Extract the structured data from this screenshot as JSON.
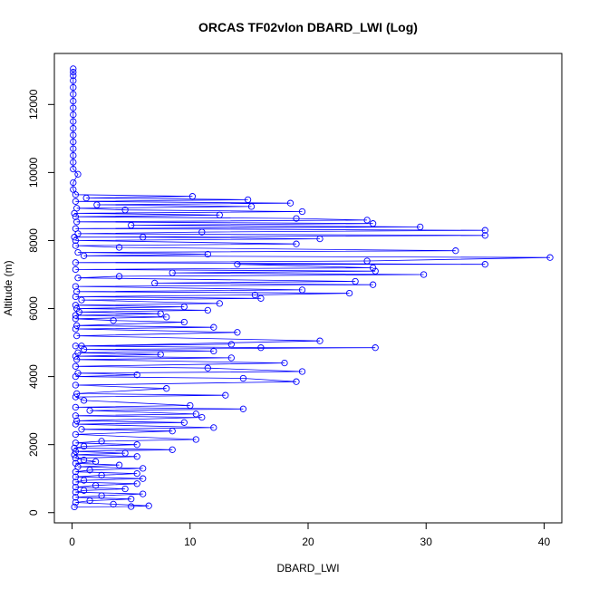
{
  "chart_data": {
    "type": "scatter",
    "title": "ORCAS TF02vlon DBARD_LWI (Log)",
    "xlabel": "DBARD_LWI",
    "ylabel": "Altitude (m)",
    "xlim": [
      -1.5,
      41.5
    ],
    "ylim": [
      -300,
      13500
    ],
    "x_ticks": [
      0,
      10,
      20,
      30,
      40
    ],
    "x_tick_labels": [
      "0",
      "10",
      "20",
      "30",
      "40"
    ],
    "y_ticks": [
      0,
      2000,
      4000,
      6000,
      8000,
      10000,
      12000
    ],
    "y_tick_labels": [
      "0",
      "2000",
      "4000",
      "6000",
      "8000",
      "10000",
      "12000"
    ],
    "grid": false,
    "marker": "open-circle",
    "connect_points": true,
    "color": "#0000ff",
    "series": [
      {
        "name": "",
        "points": [
          [
            0.1,
            13050
          ],
          [
            0.1,
            12950
          ],
          [
            0.1,
            12850
          ],
          [
            0.1,
            12700
          ],
          [
            0.1,
            12500
          ],
          [
            0.1,
            12300
          ],
          [
            0.1,
            12100
          ],
          [
            0.1,
            11900
          ],
          [
            0.1,
            11700
          ],
          [
            0.1,
            11500
          ],
          [
            0.1,
            11300
          ],
          [
            0.1,
            11100
          ],
          [
            0.1,
            10900
          ],
          [
            0.1,
            10700
          ],
          [
            0.1,
            10500
          ],
          [
            0.1,
            10300
          ],
          [
            0.1,
            10100
          ],
          [
            0.5,
            9950
          ],
          [
            0.1,
            9700
          ],
          [
            0.1,
            9500
          ],
          [
            0.3,
            9350
          ],
          [
            10.2,
            9300
          ],
          [
            1.2,
            9250
          ],
          [
            14.9,
            9200
          ],
          [
            0.3,
            9150
          ],
          [
            18.5,
            9100
          ],
          [
            2.1,
            9050
          ],
          [
            15.2,
            9000
          ],
          [
            0.4,
            8950
          ],
          [
            4.5,
            8900
          ],
          [
            19.5,
            8850
          ],
          [
            0.2,
            8800
          ],
          [
            12.5,
            8750
          ],
          [
            0.3,
            8700
          ],
          [
            19.0,
            8650
          ],
          [
            25.0,
            8600
          ],
          [
            0.4,
            8550
          ],
          [
            25.5,
            8500
          ],
          [
            5.0,
            8450
          ],
          [
            29.5,
            8400
          ],
          [
            0.3,
            8350
          ],
          [
            35.0,
            8300
          ],
          [
            11.0,
            8250
          ],
          [
            0.5,
            8200
          ],
          [
            35.0,
            8150
          ],
          [
            0.2,
            8100
          ],
          [
            6.0,
            8100
          ],
          [
            21.0,
            8050
          ],
          [
            0.3,
            8000
          ],
          [
            19.0,
            7900
          ],
          [
            0.3,
            7850
          ],
          [
            4.0,
            7800
          ],
          [
            32.5,
            7700
          ],
          [
            0.5,
            7650
          ],
          [
            11.5,
            7600
          ],
          [
            1.0,
            7550
          ],
          [
            40.5,
            7500
          ],
          [
            25.0,
            7400
          ],
          [
            0.3,
            7350
          ],
          [
            35.0,
            7300
          ],
          [
            14.0,
            7300
          ],
          [
            25.5,
            7200
          ],
          [
            0.3,
            7150
          ],
          [
            25.7,
            7100
          ],
          [
            8.5,
            7050
          ],
          [
            29.8,
            7000
          ],
          [
            4.0,
            6950
          ],
          [
            0.5,
            6900
          ],
          [
            24.0,
            6800
          ],
          [
            7.0,
            6750
          ],
          [
            25.5,
            6700
          ],
          [
            0.3,
            6650
          ],
          [
            19.5,
            6550
          ],
          [
            0.4,
            6500
          ],
          [
            23.5,
            6450
          ],
          [
            15.5,
            6400
          ],
          [
            0.3,
            6350
          ],
          [
            16.0,
            6300
          ],
          [
            0.8,
            6250
          ],
          [
            12.5,
            6150
          ],
          [
            0.3,
            6100
          ],
          [
            9.5,
            6050
          ],
          [
            0.4,
            6000
          ],
          [
            11.5,
            5950
          ],
          [
            0.6,
            5900
          ],
          [
            7.5,
            5850
          ],
          [
            0.3,
            5800
          ],
          [
            8.0,
            5750
          ],
          [
            0.3,
            5700
          ],
          [
            3.5,
            5650
          ],
          [
            9.5,
            5600
          ],
          [
            0.4,
            5500
          ],
          [
            12.0,
            5450
          ],
          [
            0.3,
            5400
          ],
          [
            14.0,
            5300
          ],
          [
            0.4,
            5200
          ],
          [
            21.0,
            5050
          ],
          [
            0.8,
            4900
          ],
          [
            13.5,
            4950
          ],
          [
            0.3,
            4900
          ],
          [
            16.0,
            4850
          ],
          [
            25.7,
            4850
          ],
          [
            1.0,
            4800
          ],
          [
            12.0,
            4750
          ],
          [
            0.5,
            4700
          ],
          [
            7.5,
            4650
          ],
          [
            0.3,
            4600
          ],
          [
            13.5,
            4550
          ],
          [
            0.4,
            4500
          ],
          [
            18.0,
            4400
          ],
          [
            0.3,
            4300
          ],
          [
            11.5,
            4250
          ],
          [
            19.5,
            4150
          ],
          [
            0.5,
            4100
          ],
          [
            5.5,
            4050
          ],
          [
            0.3,
            4000
          ],
          [
            14.5,
            3950
          ],
          [
            19.0,
            3850
          ],
          [
            0.3,
            3750
          ],
          [
            8.0,
            3650
          ],
          [
            0.4,
            3500
          ],
          [
            13.0,
            3450
          ],
          [
            0.3,
            3400
          ],
          [
            1.0,
            3300
          ],
          [
            10.0,
            3150
          ],
          [
            0.3,
            3100
          ],
          [
            14.5,
            3050
          ],
          [
            1.5,
            3000
          ],
          [
            10.5,
            2900
          ],
          [
            0.3,
            2850
          ],
          [
            11.0,
            2800
          ],
          [
            0.4,
            2700
          ],
          [
            9.5,
            2650
          ],
          [
            0.3,
            2600
          ],
          [
            12.0,
            2500
          ],
          [
            0.8,
            2450
          ],
          [
            8.5,
            2400
          ],
          [
            0.3,
            2300
          ],
          [
            10.5,
            2150
          ],
          [
            2.5,
            2100
          ],
          [
            0.3,
            2050
          ],
          [
            5.5,
            2000
          ],
          [
            1.0,
            1950
          ],
          [
            0.2,
            1900
          ],
          [
            8.5,
            1850
          ],
          [
            0.3,
            1800
          ],
          [
            4.5,
            1750
          ],
          [
            0.2,
            1700
          ],
          [
            5.5,
            1650
          ],
          [
            0.3,
            1600
          ],
          [
            1.0,
            1550
          ],
          [
            2.0,
            1500
          ],
          [
            0.3,
            1450
          ],
          [
            4.0,
            1400
          ],
          [
            0.5,
            1350
          ],
          [
            6.0,
            1300
          ],
          [
            1.5,
            1250
          ],
          [
            0.3,
            1200
          ],
          [
            5.5,
            1150
          ],
          [
            2.5,
            1100
          ],
          [
            0.3,
            1050
          ],
          [
            6.0,
            1000
          ],
          [
            1.0,
            950
          ],
          [
            0.3,
            900
          ],
          [
            5.5,
            850
          ],
          [
            2.0,
            800
          ],
          [
            0.3,
            750
          ],
          [
            4.5,
            700
          ],
          [
            1.0,
            650
          ],
          [
            0.3,
            600
          ],
          [
            6.0,
            550
          ],
          [
            2.5,
            500
          ],
          [
            0.3,
            450
          ],
          [
            5.0,
            400
          ],
          [
            1.5,
            350
          ],
          [
            0.3,
            300
          ],
          [
            3.5,
            250
          ],
          [
            6.5,
            200
          ],
          [
            5.0,
            180
          ],
          [
            0.2,
            170
          ]
        ]
      }
    ]
  }
}
